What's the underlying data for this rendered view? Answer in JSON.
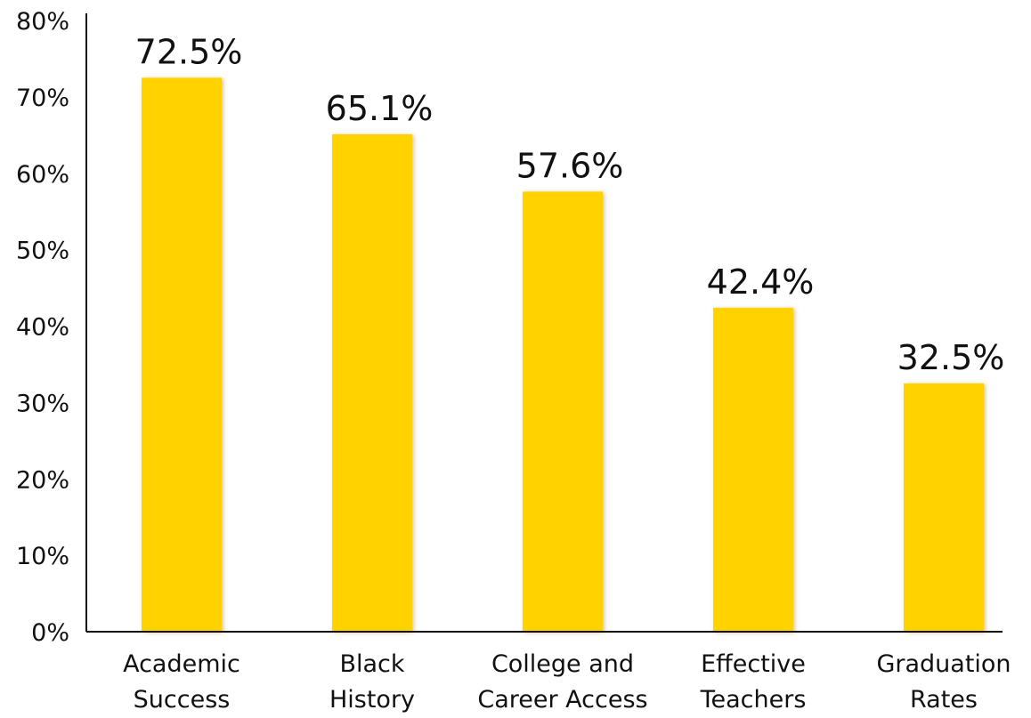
{
  "chart_data": {
    "type": "bar",
    "categories": [
      [
        "Academic",
        "Success"
      ],
      [
        "Black",
        "History"
      ],
      [
        "College and",
        "Career Access"
      ],
      [
        "Effective",
        "Teachers"
      ],
      [
        "Graduation",
        "Rates"
      ]
    ],
    "values": [
      72.5,
      65.1,
      57.6,
      42.4,
      32.5
    ],
    "data_labels": [
      "72.5%",
      "65.1%",
      "57.6%",
      "42.4%",
      "32.5%"
    ],
    "ylim": [
      0,
      80
    ],
    "y_ticks": [
      "0%",
      "10%",
      "20%",
      "30%",
      "40%",
      "50%",
      "60%",
      "70%",
      "80%"
    ],
    "grid": false,
    "legend": false,
    "colors": {
      "bar": "#FFD200",
      "bar_shadow": "#E0B070",
      "axis": "#111111",
      "text": "#111111"
    }
  }
}
